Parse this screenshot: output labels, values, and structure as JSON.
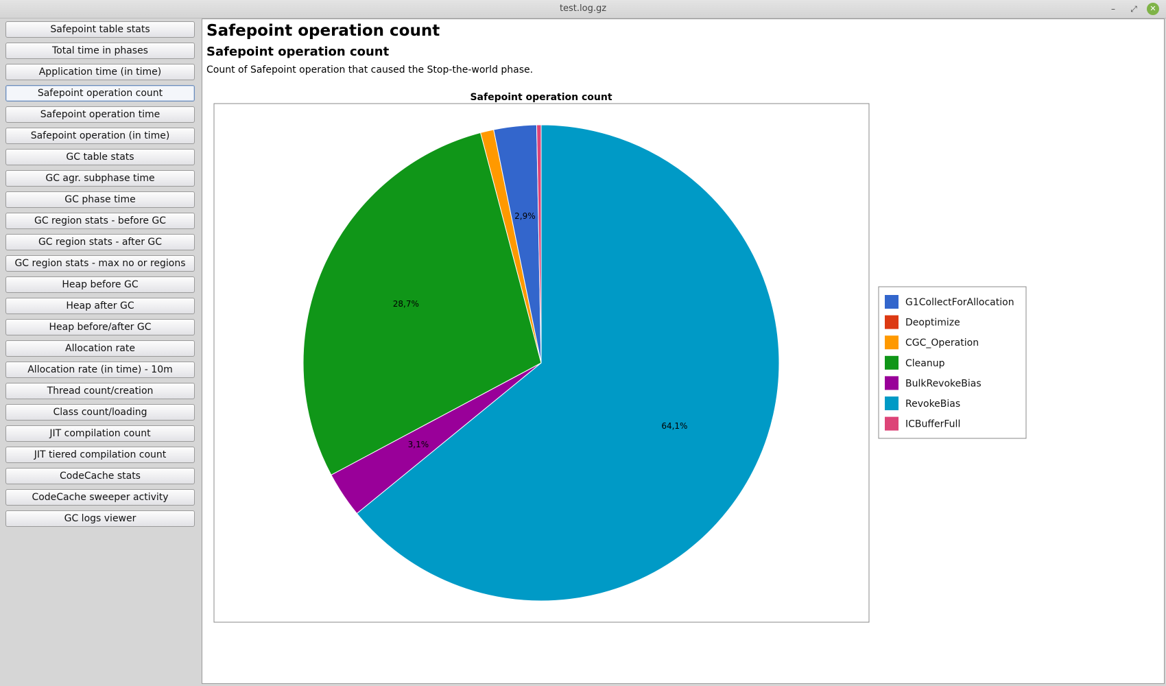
{
  "window": {
    "title": "test.log.gz",
    "minimize_glyph": "–",
    "maximize_glyph": "⤢",
    "close_glyph": "✕"
  },
  "sidebar": {
    "items": [
      {
        "label": "Safepoint table stats"
      },
      {
        "label": "Total time in phases"
      },
      {
        "label": "Application time (in time)"
      },
      {
        "label": "Safepoint operation count",
        "selected": true
      },
      {
        "label": "Safepoint operation time"
      },
      {
        "label": "Safepoint operation (in time)"
      },
      {
        "label": "GC table stats"
      },
      {
        "label": "GC agr. subphase time"
      },
      {
        "label": "GC phase time"
      },
      {
        "label": "GC region stats - before GC"
      },
      {
        "label": "GC region stats - after GC"
      },
      {
        "label": "GC region stats - max no or regions"
      },
      {
        "label": "Heap before GC"
      },
      {
        "label": "Heap after GC"
      },
      {
        "label": "Heap before/after GC"
      },
      {
        "label": "Allocation rate"
      },
      {
        "label": "Allocation rate (in time) - 10m"
      },
      {
        "label": "Thread count/creation"
      },
      {
        "label": "Class count/loading"
      },
      {
        "label": "JIT compilation count"
      },
      {
        "label": "JIT tiered compilation count"
      },
      {
        "label": "CodeCache stats"
      },
      {
        "label": "CodeCache sweeper activity"
      },
      {
        "label": "GC logs viewer"
      }
    ]
  },
  "main": {
    "page_title": "Safepoint operation count",
    "section_title": "Safepoint operation count",
    "description": "Count of Safepoint operation that caused the Stop-the-world phase."
  },
  "chart_data": {
    "type": "pie",
    "title": "Safepoint operation count",
    "legend_position": "right",
    "start_angle_deg": 90,
    "direction": "clockwise",
    "slices": [
      {
        "name": "RevokeBias",
        "value": 64.1,
        "label": "64,1%",
        "color": "#009ac6"
      },
      {
        "name": "BulkRevokeBias",
        "value": 3.1,
        "label": "3,1%",
        "color": "#990099"
      },
      {
        "name": "Cleanup",
        "value": 28.7,
        "label": "28,7%",
        "color": "#109618"
      },
      {
        "name": "CGC_Operation",
        "value": 0.9,
        "label": "",
        "color": "#ff9900"
      },
      {
        "name": "Deoptimize",
        "value": 0.0,
        "label": "",
        "color": "#dc3912"
      },
      {
        "name": "G1CollectForAllocation",
        "value": 2.9,
        "label": "2,9%",
        "color": "#3366cc"
      },
      {
        "name": "ICBufferFull",
        "value": 0.3,
        "label": "",
        "color": "#dd4477"
      }
    ],
    "legend": [
      {
        "name": "G1CollectForAllocation",
        "color": "#3366cc"
      },
      {
        "name": "Deoptimize",
        "color": "#dc3912"
      },
      {
        "name": "CGC_Operation",
        "color": "#ff9900"
      },
      {
        "name": "Cleanup",
        "color": "#109618"
      },
      {
        "name": "BulkRevokeBias",
        "color": "#990099"
      },
      {
        "name": "RevokeBias",
        "color": "#009ac6"
      },
      {
        "name": "ICBufferFull",
        "color": "#dd4477"
      }
    ]
  }
}
